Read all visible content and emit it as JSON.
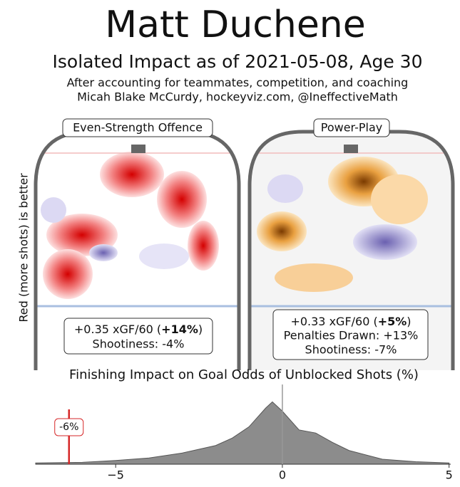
{
  "header": {
    "title": "Matt Duchene",
    "subtitle": "Isolated Impact as of 2021-05-08, Age 30",
    "note": "After accounting for teammates, competition, and coaching",
    "credit": "Micah Blake McCurdy, hockeyviz.com, @IneffectiveMath"
  },
  "side_label": "Red (more shots) is better",
  "panels": [
    {
      "title": "Even-Strength Offence",
      "line1": {
        "prefix": "+0.35 xGF/60 (",
        "bold": "+14%",
        "suffix": ")"
      },
      "lines": [
        "Shootiness: -4%"
      ]
    },
    {
      "title": "Power-Play",
      "line1": {
        "prefix": "+0.33 xGF/60 (",
        "bold": "+5%",
        "suffix": ")"
      },
      "lines": [
        "Penalties Drawn: +13%",
        "Shootiness: -7%"
      ]
    }
  ],
  "chart_data": {
    "type": "area",
    "title": "Finishing Impact on Goal Odds of Unblocked Shots (%)",
    "x": [
      -7.4,
      -6,
      -5,
      -4,
      -3,
      -2,
      -1.5,
      -1,
      -0.5,
      -0.3,
      0,
      0.5,
      1,
      1.5,
      2,
      3,
      4,
      5
    ],
    "values": [
      0.02,
      0.03,
      0.06,
      0.1,
      0.18,
      0.3,
      0.42,
      0.6,
      0.9,
      1.0,
      0.85,
      0.55,
      0.5,
      0.35,
      0.22,
      0.08,
      0.04,
      0.02
    ],
    "color": "#8c8c8c",
    "xlim": [
      -7.4,
      5.05
    ],
    "ylim": [
      0,
      1.05
    ],
    "xticks": [
      {
        "value": -5,
        "label": "−5"
      },
      0,
      5
    ],
    "marker": {
      "value": -6.4,
      "value_label": "-6%",
      "color": "#d62728"
    }
  }
}
